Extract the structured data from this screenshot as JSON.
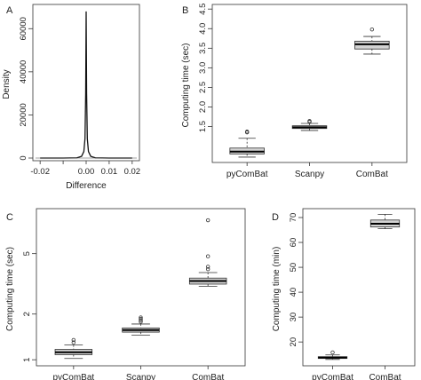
{
  "chart_data": [
    {
      "panel": "A",
      "type": "line",
      "xlabel": "Difference",
      "ylabel": "Density",
      "xlim": [
        -0.022,
        0.022
      ],
      "ylim": [
        0,
        70000
      ],
      "x_ticks": [
        -0.02,
        -0.01,
        0.0,
        0.01,
        0.02
      ],
      "x_tick_labels": [
        "-0.02",
        "",
        "0.00",
        "0.01",
        "0.02"
      ],
      "y_ticks": [
        0,
        20000,
        40000,
        60000
      ],
      "y_tick_labels": [
        "0",
        "20000",
        "40000",
        "60000"
      ],
      "series": [
        {
          "x": [
            -0.02,
            -0.01,
            -0.004,
            -0.002,
            -0.001,
            -0.0005,
            -0.0002,
            0.0,
            0.0002,
            0.0005,
            0.001,
            0.002,
            0.004,
            0.01,
            0.02
          ],
          "y": [
            0,
            0,
            100,
            800,
            3000,
            9000,
            30000,
            68000,
            30000,
            9000,
            3000,
            800,
            100,
            0,
            0
          ]
        }
      ],
      "grid": false
    },
    {
      "panel": "B",
      "type": "box",
      "ylabel": "Computing time (sec)",
      "categories": [
        "pyComBat",
        "Scanpy",
        "ComBat"
      ],
      "ylim": [
        0.65,
        4.55
      ],
      "y_ticks": [
        1.5,
        2.0,
        2.5,
        3.0,
        3.5,
        4.0,
        4.5
      ],
      "y_tick_labels": [
        "1.5",
        "2.0",
        "2.5",
        "3.0",
        "3.5",
        "4.0",
        "4.5"
      ],
      "boxes": [
        {
          "min": 0.72,
          "q1": 0.8,
          "median": 0.86,
          "q3": 0.95,
          "max": 1.2,
          "outliers": [
            1.35,
            1.37
          ]
        },
        {
          "min": 1.4,
          "q1": 1.45,
          "median": 1.48,
          "q3": 1.52,
          "max": 1.58,
          "outliers": [
            1.62,
            1.64
          ]
        },
        {
          "min": 3.35,
          "q1": 3.48,
          "median": 3.6,
          "q3": 3.68,
          "max": 3.8,
          "outliers": [
            3.98
          ]
        }
      ]
    },
    {
      "panel": "C",
      "type": "box",
      "ylabel": "Computing time (sec)",
      "categories": [
        "pyComBat",
        "Scanpy",
        "ComBat"
      ],
      "log_scale": true,
      "ylim": [
        0.95,
        9.5
      ],
      "y_ticks": [
        1,
        2,
        5
      ],
      "y_tick_labels": [
        "1",
        "2",
        "5"
      ],
      "boxes": [
        {
          "min": 1.02,
          "q1": 1.08,
          "median": 1.12,
          "q3": 1.17,
          "max": 1.25,
          "outliers": [
            1.3,
            1.35
          ]
        },
        {
          "min": 1.45,
          "q1": 1.52,
          "median": 1.57,
          "q3": 1.62,
          "max": 1.72,
          "outliers": [
            1.78,
            1.82,
            1.86,
            1.9
          ]
        },
        {
          "min": 3.05,
          "q1": 3.15,
          "median": 3.3,
          "q3": 3.45,
          "max": 3.75,
          "outliers": [
            3.95,
            4.1,
            4.8,
            8.3
          ]
        }
      ]
    },
    {
      "panel": "D",
      "type": "box",
      "ylabel": "Computing time (min)",
      "categories": [
        "pyComBat",
        "ComBat"
      ],
      "ylim": [
        11.5,
        72.5
      ],
      "y_ticks": [
        20,
        30,
        40,
        50,
        60,
        70
      ],
      "y_tick_labels": [
        "20",
        "30",
        "40",
        "50",
        "60",
        "70"
      ],
      "boxes": [
        {
          "min": 13.0,
          "q1": 13.4,
          "median": 13.7,
          "q3": 14.1,
          "max": 14.8,
          "outliers": [
            15.8
          ]
        },
        {
          "min": 65.5,
          "q1": 66.2,
          "median": 67.5,
          "q3": 69.0,
          "max": 71.3,
          "outliers": []
        }
      ]
    }
  ]
}
